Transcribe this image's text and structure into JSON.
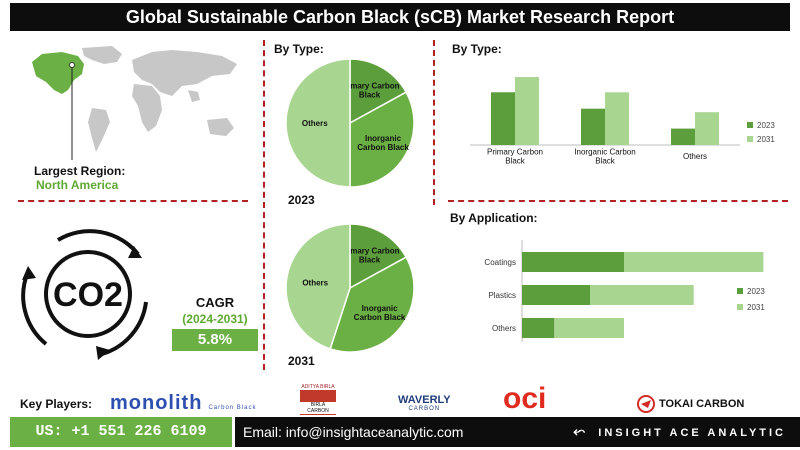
{
  "header": {
    "title": "Global Sustainable Carbon Black (sCB) Market Research Report"
  },
  "region": {
    "label": "Largest Region:",
    "value": "North America"
  },
  "cagr": {
    "label": "CAGR",
    "period": "(2024-2031)",
    "value": "5.8%",
    "icon_text": "CO2"
  },
  "pie_section": {
    "heading": "By Type:"
  },
  "bar_type_section": {
    "heading": "By Type:"
  },
  "bar_app_section": {
    "heading": "By Application:"
  },
  "key_players": {
    "label": "Key Players:",
    "logos": [
      {
        "name": "monolith",
        "sub": "Carbon Black",
        "icon": "monolith-logo"
      },
      {
        "name": "ADITYA BIRLA",
        "sub": "BIRLA CARBON",
        "icon": "birla-carbon-logo"
      },
      {
        "name": "WAVERLY",
        "sub": "CARBON",
        "icon": "waverly-carbon-logo"
      },
      {
        "name": "oci",
        "icon": "oci-logo"
      },
      {
        "name": "TOKAI CARBON",
        "icon": "tokai-carbon-logo"
      }
    ]
  },
  "footer": {
    "phone": "US: +1 551 226 6109",
    "email": "Email: info@insightaceanalytic.com",
    "brand": "INSIGHT ACE ANALYTIC"
  },
  "colors": {
    "dark_green": "#5b9e3b",
    "light_green": "#a8d590",
    "mid_green": "#6bb044",
    "accent_red": "#b22222",
    "header_bg": "#0d0d0d"
  },
  "chart_data": [
    {
      "type": "pie",
      "title": "2023",
      "labels": [
        "Primary Carbon Black",
        "Inorganic Carbon Black",
        "Others"
      ],
      "values": [
        17,
        33,
        50
      ]
    },
    {
      "type": "pie",
      "title": "2031",
      "labels": [
        "Primary Carbon Black",
        "Inorganic Carbon Black",
        "Others"
      ],
      "values": [
        17,
        38,
        45
      ]
    },
    {
      "type": "bar",
      "title": "By Type:",
      "categories": [
        "Primary Carbon Black",
        "Inorganic Carbon Black",
        "Others"
      ],
      "series": [
        {
          "name": "2023",
          "values": [
            45,
            31,
            14
          ]
        },
        {
          "name": "2031",
          "values": [
            58,
            45,
            28
          ]
        }
      ],
      "ylim": [
        0,
        70
      ],
      "legend": "right"
    },
    {
      "type": "bar",
      "orientation": "horizontal",
      "title": "By Application:",
      "categories": [
        "Coatings",
        "Plastics",
        "Others"
      ],
      "series": [
        {
          "name": "2023",
          "values": [
            60,
            40,
            19
          ]
        },
        {
          "name": "2031",
          "values": [
            82,
            61,
            41
          ]
        }
      ],
      "stacked": true,
      "legend": "right"
    }
  ]
}
